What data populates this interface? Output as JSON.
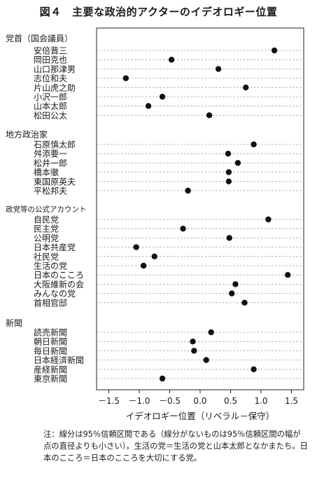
{
  "figure": {
    "title": "図４　主要な政治的アクターのイデオロギー位置"
  },
  "chart_data": {
    "type": "scatter",
    "title": "図４　主要な政治的アクターのイデオロギー位置",
    "xlabel": "イデオロギー位置（リベラル－保守）",
    "ylabel": "",
    "xlim": [
      -1.7,
      1.6
    ],
    "xticks": [
      -1.5,
      -1.0,
      -0.5,
      0.0,
      0.5,
      1.0,
      1.5
    ],
    "xtick_labels": [
      "－1.5",
      "－1.0",
      "－0.5",
      "0.0",
      "0.5",
      "1.0",
      "1.5"
    ],
    "grid": "horizontal dashed per row",
    "groups": [
      {
        "name": "党首（国会議員）",
        "items": [
          {
            "label": "安倍晋三",
            "x": 1.22
          },
          {
            "label": "岡田克也",
            "x": -0.47
          },
          {
            "label": "山口那津男",
            "x": 0.3
          },
          {
            "label": "志位和夫",
            "x": -1.22
          },
          {
            "label": "片山虎之助",
            "x": 0.75
          },
          {
            "label": "小沢一郎",
            "x": -0.62
          },
          {
            "label": "山本太郎",
            "x": -0.85
          },
          {
            "label": "松田公太",
            "x": 0.15
          }
        ]
      },
      {
        "name": "地方政治家",
        "items": [
          {
            "label": "石原慎太郎",
            "x": 0.88
          },
          {
            "label": "舛添要一",
            "x": 0.46
          },
          {
            "label": "松井一郎",
            "x": 0.62
          },
          {
            "label": "橋本徹",
            "x": 0.47
          },
          {
            "label": "東国原英夫",
            "x": 0.47
          },
          {
            "label": "平松邦夫",
            "x": -0.2
          }
        ]
      },
      {
        "name": "政党等の公式アカウント",
        "items": [
          {
            "label": "自民党",
            "x": 1.12
          },
          {
            "label": "民主党",
            "x": -0.28
          },
          {
            "label": "公明党",
            "x": 0.48
          },
          {
            "label": "日本共産党",
            "x": -1.05
          },
          {
            "label": "社民党",
            "x": -0.75
          },
          {
            "label": "生活の党",
            "x": -0.93
          },
          {
            "label": "日本のこころ",
            "x": 1.44
          },
          {
            "label": "大阪維新の会",
            "x": 0.58
          },
          {
            "label": "みんなの党",
            "x": 0.52
          },
          {
            "label": "首相官邸",
            "x": 0.73
          }
        ]
      },
      {
        "name": "新聞",
        "items": [
          {
            "label": "読売新聞",
            "x": 0.18
          },
          {
            "label": "朝日新聞",
            "x": -0.12
          },
          {
            "label": "毎日新聞",
            "x": -0.1
          },
          {
            "label": "日本経済新聞",
            "x": 0.1
          },
          {
            "label": "産経新聞",
            "x": 0.88
          },
          {
            "label": "東京新聞",
            "x": -0.62
          }
        ]
      }
    ]
  },
  "note": {
    "text": "注：線分は95％信頼区間である（線分がないものは95％信頼区間の幅が点の直径よりも小さい）。生活の党＝生活の党と山本太郎となかまたち。日本のこころ＝日本のこころを大切にする党。"
  }
}
